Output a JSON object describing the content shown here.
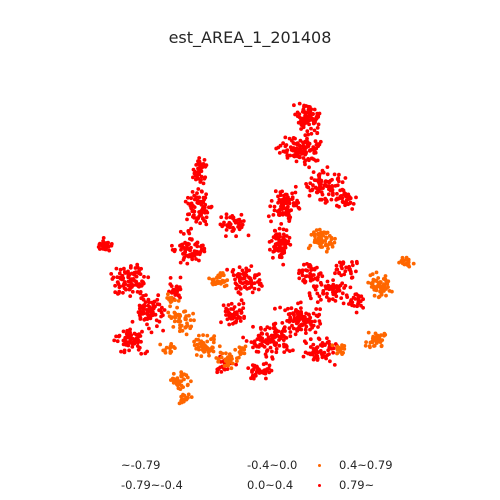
{
  "title": "est_AREA_1_201408",
  "colors": {
    "high": "#ff0000",
    "mid": "#ff6600",
    "blank": "#ffffff"
  },
  "legend": [
    {
      "label": "~-0.79",
      "color": "#ffffff"
    },
    {
      "label": "-0.79~-0.4",
      "color": "#ffffff"
    },
    {
      "label": "-0.4~0.0",
      "color": "#ffffff"
    },
    {
      "label": "0.0~0.4",
      "color": "#ffffff"
    },
    {
      "label": "0.4~0.79",
      "color": "#ff6600"
    },
    {
      "label": "0.79~",
      "color": "#ff0000"
    }
  ]
}
